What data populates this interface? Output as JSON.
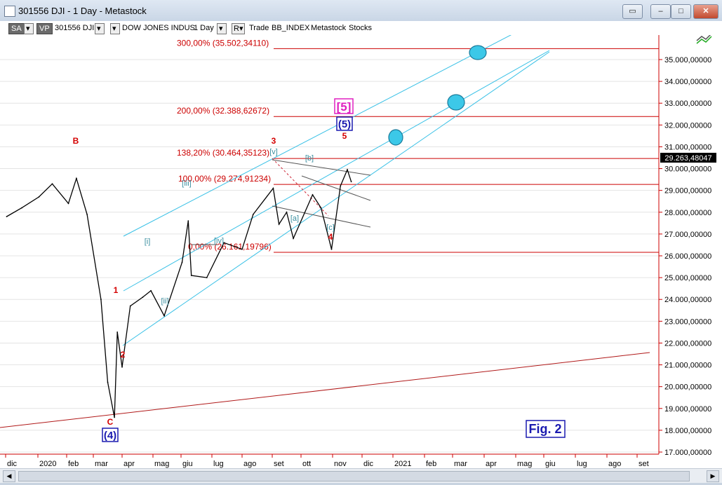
{
  "window": {
    "title": "301556 DJI - 1 Day - Metastock",
    "controls": [
      "minimize",
      "maximize",
      "close"
    ]
  },
  "toolbar": {
    "sa": "SA",
    "vp": "VP",
    "symbol": "301556 DJI",
    "name": "DOW JONES INDUS",
    "period": "1 Day",
    "r_label": "R",
    "trade": "Trade",
    "index": "BB_INDEX",
    "source": "Metastock",
    "type": "Stocks"
  },
  "chart_data": {
    "type": "line",
    "series": [
      {
        "x": [
          "2019-12-02",
          "2019-12-16",
          "2020-01-02",
          "2020-01-16",
          "2020-02-03",
          "2020-02-12",
          "2020-02-24",
          "2020-03-09",
          "2020-03-16",
          "2020-03-23",
          "2020-03-26",
          "2020-04-01",
          "2020-04-09",
          "2020-04-21",
          "2020-04-29",
          "2020-05-13",
          "2020-06-02",
          "2020-06-08",
          "2020-06-11",
          "2020-06-26",
          "2020-07-13",
          "2020-07-31",
          "2020-08-12",
          "2020-09-02",
          "2020-09-08",
          "2020-09-16",
          "2020-09-23",
          "2020-10-12",
          "2020-10-20",
          "2020-10-30",
          "2020-11-09",
          "2020-11-16",
          "2020-11-20"
        ],
        "values": [
          27800,
          28200,
          28700,
          29300,
          28400,
          29550,
          27900,
          24000,
          20200,
          18590,
          22500,
          20900,
          23700,
          24100,
          24400,
          23250,
          25700,
          27600,
          25100,
          25000,
          26600,
          26300,
          27900,
          29100,
          27450,
          28000,
          26800,
          28800,
          28200,
          26300,
          29200,
          29950,
          29400
        ]
      }
    ],
    "xlabels": [
      "dic",
      "2020",
      "feb",
      "mar",
      "apr",
      "mag",
      "giu",
      "lug",
      "ago",
      "set",
      "ott",
      "nov",
      "dic",
      "2021",
      "feb",
      "mar",
      "apr",
      "mag",
      "giu",
      "lug",
      "ago",
      "set"
    ],
    "ylabels": [
      "17.000,00000",
      "18.000,00000",
      "19.000,00000",
      "20.000,00000",
      "21.000,00000",
      "22.000,00000",
      "23.000,00000",
      "24.000,00000",
      "25.000,00000",
      "26.000,00000",
      "27.000,00000",
      "28.000,00000",
      "29.000,00000",
      "30.000,00000",
      "31.000,00000",
      "32.000,00000",
      "33.000,00000",
      "34.000,00000",
      "35.000,00000"
    ],
    "ylim": [
      16800,
      36500
    ],
    "last_price": "29.263,48047",
    "fib_levels": [
      {
        "label": "300,00% (35.502,34110)",
        "value": 35502.3411
      },
      {
        "label": "200,00% (32.388,62672)",
        "value": 32388.62672
      },
      {
        "label": "138,20% (30.464,35123)",
        "value": 30464.35123
      },
      {
        "label": "100,00% (29.274,91234)",
        "value": 29274.91234
      },
      {
        "label": "0,00% (26.161,19796)",
        "value": 26161.19796
      }
    ],
    "wave_labels": [
      {
        "text": "B",
        "color": "red"
      },
      {
        "text": "C",
        "color": "red"
      },
      {
        "text": "(4)",
        "color": "blue"
      },
      {
        "text": "1",
        "color": "red"
      },
      {
        "text": "2",
        "color": "red"
      },
      {
        "text": "3",
        "color": "red"
      },
      {
        "text": "4",
        "color": "red"
      },
      {
        "text": "5",
        "color": "red"
      },
      {
        "text": "(5)",
        "color": "blue"
      },
      {
        "text": "[5]",
        "color": "magenta"
      },
      {
        "text": "[i]",
        "color": "teal"
      },
      {
        "text": "[ii]",
        "color": "teal"
      },
      {
        "text": "[iii]",
        "color": "teal"
      },
      {
        "text": "[iv]",
        "color": "teal"
      },
      {
        "text": "[v]",
        "color": "teal"
      },
      {
        "text": "[a]",
        "color": "teal"
      },
      {
        "text": "[b]",
        "color": "teal"
      },
      {
        "text": "[c]",
        "color": "teal"
      }
    ],
    "figure_label": "Fig. 2",
    "colors": {
      "channel": "#37c0e6",
      "fib": "#cc0000",
      "price": "#000000",
      "target": "#3cc8e8",
      "wave_red": "#d40000",
      "wave_blue": "#1a1ab0",
      "wave_magenta": "#e020c0",
      "wave_teal": "#3a8fa0"
    }
  }
}
